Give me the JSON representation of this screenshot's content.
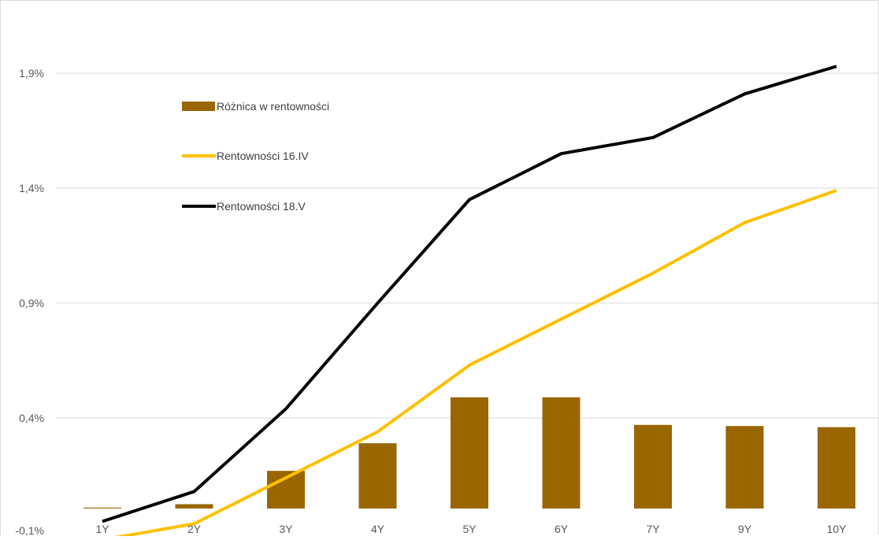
{
  "chart_data": {
    "type": "bar",
    "categories": [
      "1Y",
      "2Y",
      "3Y",
      "4Y",
      "5Y",
      "6Y",
      "7Y",
      "9Y",
      "10Y"
    ],
    "y_ticks": [
      "-0,1%",
      "0,4%",
      "0,9%",
      "1,4%",
      "1,9%"
    ],
    "y_tick_values": [
      -0.1,
      0.4,
      0.9,
      1.4,
      1.9
    ],
    "ylim": [
      -0.1,
      2.18
    ],
    "grid": true,
    "legend_position": "top-left",
    "series": [
      {
        "name": "Różnica w rentowności",
        "type": "bar",
        "color": "#996600",
        "values": [
          0.01,
          0.025,
          0.17,
          0.29,
          0.49,
          0.49,
          0.37,
          0.365,
          0.36
        ]
      },
      {
        "name": "Rentowności 16.IV",
        "type": "line",
        "color": "#FFC000",
        "values": [
          -0.13,
          -0.06,
          0.14,
          0.34,
          0.63,
          0.83,
          1.03,
          1.25,
          1.39
        ]
      },
      {
        "name": "Rentowności 18.V",
        "type": "line",
        "color": "#000000",
        "values": [
          -0.05,
          0.08,
          0.44,
          0.9,
          1.35,
          1.55,
          1.62,
          1.81,
          1.93
        ]
      }
    ]
  }
}
